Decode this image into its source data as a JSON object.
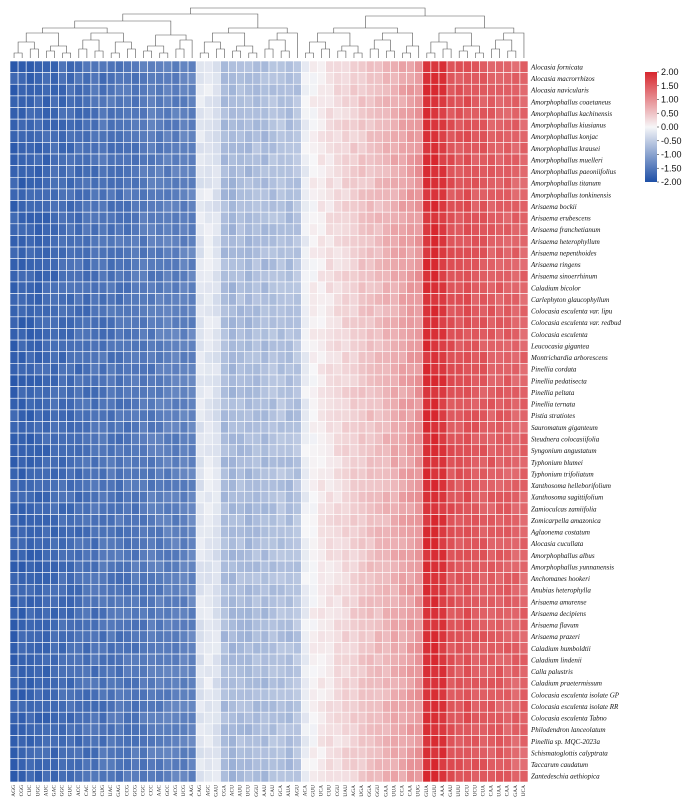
{
  "chart_data": {
    "type": "heatmap",
    "title": "",
    "xlabel": "",
    "ylabel": "",
    "colorbar": {
      "ticks": [
        "2.00",
        "1.50",
        "1.00",
        "0.50",
        "0.00",
        "-0.50",
        "-1.00",
        "-1.50",
        "-2.00"
      ],
      "range": [
        -2.0,
        2.0
      ],
      "colors": {
        "high": "#d7272e",
        "mid": "#f6f6f8",
        "low": "#1e4fa6"
      }
    },
    "dendrogram": "hierarchical clustering of codon columns (top)",
    "rows": [
      "Alocasia fornicata",
      "Alocasia macrorrhizos",
      "Alocasia navicularis",
      "Amorphophallus coaetaneus",
      "Amorphophallus kachinensis",
      "Amorphophallus kiusianus",
      "Amorphophallus konjac",
      "Amorphophallus krausei",
      "Amorphophallus muelleri",
      "Amorphophallus paeoniifolius",
      "Amorphophallus titanum",
      "Amorphophallus tonkinensis",
      "Arisaema bockii",
      "Arisaema erubescens",
      "Arisaema franchetianum",
      "Arisaema heterophyllum",
      "Arisaema nepenthoides",
      "Arisaema ringens",
      "Arisaema sinoerrhinum",
      "Caladium bicolor",
      "Carlephyton glaucophyllum",
      "Colocasia esculenta var. lipu",
      "Colocasia esculenta var. redbud",
      "Colocasia esculenta",
      "Leucocasia gigantea",
      "Montrichardia arborescens",
      "Pinellia cordata",
      "Pinellia pedatisecta",
      "Pinellia peltata",
      "Pinellia ternata",
      "Pistia stratiotes",
      "Sauromatum giganteum",
      "Steudnera colocasiifolia",
      "Syngonium angustatum",
      "Typhonium blumei",
      "Typhonium trifoliatum",
      "Xanthosoma helleborifolium",
      "Xanthosoma sagittifolium",
      "Zamioculcas zamiifolia",
      "Zomicarpella amazonica",
      "Aglaonema costatum",
      "Alocasia cucullata",
      "Amorphophallus albus",
      "Amorphophallus yunnanensis",
      "Anchomanes hookeri",
      "Anubias heterophylla",
      "Arisaema amurense",
      "Arisaema decipiens",
      "Arisaema flavum",
      "Arisaema prazeri",
      "Caladium humboldtii",
      "Caladium lindenii",
      "Calla palustris",
      "Caladium praetermissum",
      "Colocasia esculenta isolate GP",
      "Colocasia esculenta isolate RR",
      "Colocasia esculenta Tabno",
      "Philodendron lanceolatum",
      "Pinellia sp. MQC-2023a",
      "Schismatoglottis calyptrata",
      "Taccarum caudatum",
      "Zantedeschia aethiopica"
    ],
    "columns": [
      "AGG",
      "CGG",
      "CUC",
      "UGC",
      "AUC",
      "GAC",
      "GGC",
      "GUC",
      "ACC",
      "CAC",
      "UCC",
      "CUG",
      "UAC",
      "GAG",
      "CCG",
      "GCG",
      "CGC",
      "CCC",
      "AAC",
      "GCC",
      "ACG",
      "UCG",
      "AAG",
      "CAG",
      "AGC",
      "GAU",
      "CGA",
      "ACU",
      "AUU",
      "UCU",
      "GGU",
      "AAU",
      "CAU",
      "GCA",
      "AUA",
      "AGU",
      "ACA",
      "GUU",
      "UCA",
      "CUU",
      "CGU",
      "UAU",
      "AGA",
      "UGA",
      "GGA",
      "GGU",
      "GAA",
      "UUA",
      "CCA",
      "CAA",
      "UUG",
      "GUA",
      "GUU",
      "AAA",
      "GAU",
      "UUU",
      "GCU",
      "UCU",
      "CUA",
      "CAA",
      "UAA",
      "CAA",
      "GAA",
      "UCA"
    ],
    "column_means": [
      -1.79,
      -1.77,
      -1.75,
      -1.72,
      -1.7,
      -1.68,
      -1.66,
      -1.64,
      -1.63,
      -1.61,
      -1.6,
      -1.58,
      -1.56,
      -1.55,
      -1.53,
      -1.52,
      -1.5,
      -1.48,
      -1.46,
      -1.44,
      -1.42,
      -1.4,
      -1.38,
      -0.2,
      -0.16,
      -0.24,
      -0.7,
      -0.75,
      -0.68,
      -0.72,
      -0.66,
      -0.7,
      -0.64,
      -0.62,
      -0.68,
      -0.6,
      -0.1,
      0.05,
      0.12,
      0.2,
      0.25,
      0.32,
      0.38,
      0.45,
      0.5,
      0.55,
      0.62,
      0.7,
      0.78,
      0.85,
      0.92,
      1.9,
      1.95,
      1.85,
      1.58,
      1.55,
      1.6,
      1.52,
      1.5,
      1.48,
      1.47,
      1.45,
      1.42,
      1.4
    ],
    "note": "cell values approximate: column mean with small per-row variation"
  }
}
